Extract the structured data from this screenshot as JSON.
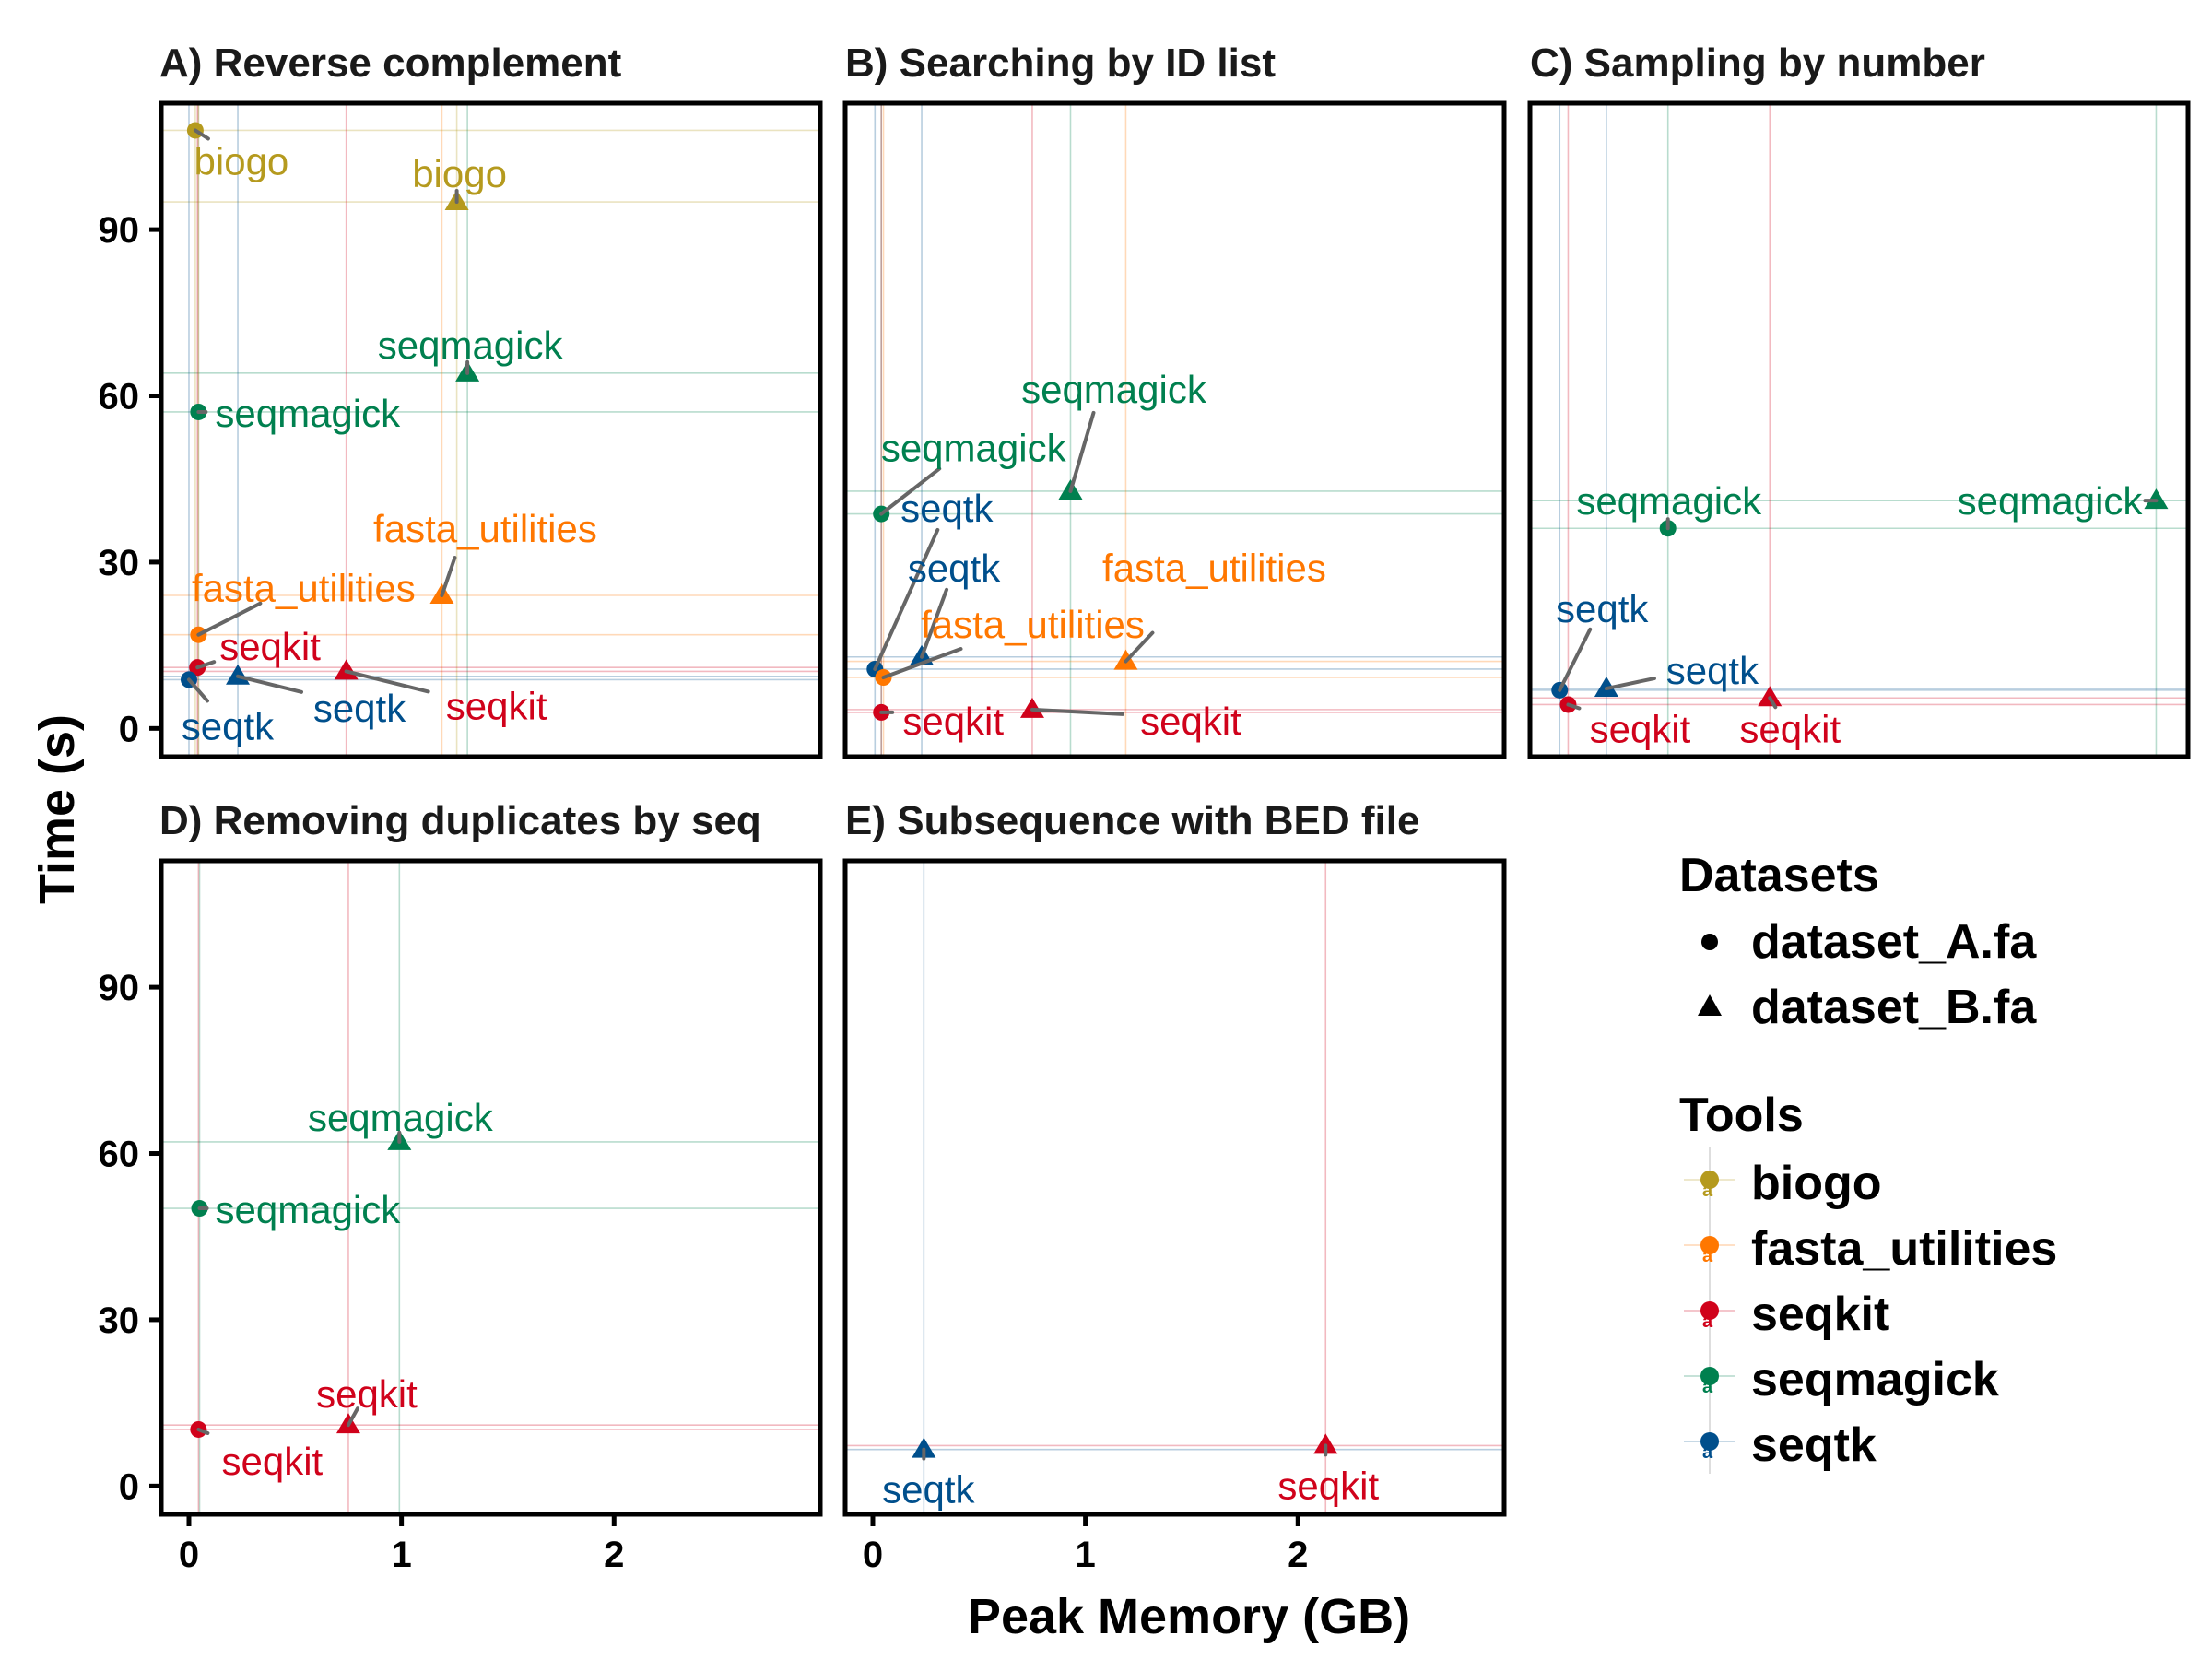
{
  "chart_data": {
    "type": "scatter",
    "xlabel": "Peak Memory (GB)",
    "ylabel": "Time (s)",
    "xlim": [
      -0.13,
      2.97
    ],
    "ylim": [
      -5.1,
      112.8
    ],
    "x_ticks": [
      "0",
      "1",
      "2"
    ],
    "x_tick_values": [
      0,
      1,
      2
    ],
    "y_ticks": [
      "0",
      "30",
      "60",
      "90"
    ],
    "y_tick_values": [
      0,
      30,
      60,
      90
    ],
    "grid": false,
    "legend_placement": "right",
    "legends": {
      "datasets": {
        "title": "Datasets",
        "entries": [
          {
            "label": "dataset_A.fa",
            "shape": "circle"
          },
          {
            "label": "dataset_B.fa",
            "shape": "triangle"
          }
        ]
      },
      "tools": {
        "title": "Tools",
        "entries": [
          {
            "label": "biogo",
            "color": "#B59A1E"
          },
          {
            "label": "fasta_utilities",
            "color": "#FF7700"
          },
          {
            "label": "seqkit",
            "color": "#D0021B"
          },
          {
            "label": "seqmagick",
            "color": "#00804F"
          },
          {
            "label": "seqtk",
            "color": "#004F8C"
          }
        ]
      }
    },
    "panels": [
      {
        "id": "A",
        "title": "A) Reverse complement",
        "points": [
          {
            "tool": "biogo",
            "dataset": "dataset_A.fa",
            "x": 0.03,
            "y": 107.9,
            "label": "biogo"
          },
          {
            "tool": "biogo",
            "dataset": "dataset_B.fa",
            "x": 1.26,
            "y": 95.0,
            "label": "biogo"
          },
          {
            "tool": "seqmagick",
            "dataset": "dataset_B.fa",
            "x": 1.31,
            "y": 64.1,
            "label": "seqmagick"
          },
          {
            "tool": "seqmagick",
            "dataset": "dataset_A.fa",
            "x": 0.045,
            "y": 57.1,
            "label": "seqmagick"
          },
          {
            "tool": "fasta_utilities",
            "dataset": "dataset_B.fa",
            "x": 1.19,
            "y": 24.0,
            "label": "fasta_utilities"
          },
          {
            "tool": "fasta_utilities",
            "dataset": "dataset_A.fa",
            "x": 0.045,
            "y": 16.9,
            "label": "fasta_utilities"
          },
          {
            "tool": "seqkit",
            "dataset": "dataset_A.fa",
            "x": 0.04,
            "y": 11.0,
            "label": "seqkit"
          },
          {
            "tool": "seqkit",
            "dataset": "dataset_B.fa",
            "x": 0.74,
            "y": 10.3,
            "label": "seqkit"
          },
          {
            "tool": "seqtk",
            "dataset": "dataset_B.fa",
            "x": 0.23,
            "y": 9.4,
            "label": "seqtk"
          },
          {
            "tool": "seqtk",
            "dataset": "dataset_A.fa",
            "x": 0.0,
            "y": 8.8,
            "label": "seqtk"
          }
        ]
      },
      {
        "id": "B",
        "title": "B) Searching by ID list",
        "points": [
          {
            "tool": "seqmagick",
            "dataset": "dataset_A.fa",
            "x": 0.04,
            "y": 38.7,
            "label": "seqmagick"
          },
          {
            "tool": "seqmagick",
            "dataset": "dataset_B.fa",
            "x": 0.93,
            "y": 42.8,
            "label": "seqmagick"
          },
          {
            "tool": "seqtk",
            "dataset": "dataset_A.fa",
            "x": 0.01,
            "y": 10.7,
            "label": "seqtk"
          },
          {
            "tool": "seqtk",
            "dataset": "dataset_B.fa",
            "x": 0.23,
            "y": 12.9,
            "label": "seqtk"
          },
          {
            "tool": "fasta_utilities",
            "dataset": "dataset_A.fa",
            "x": 0.05,
            "y": 9.2,
            "label": "fasta_utilities"
          },
          {
            "tool": "fasta_utilities",
            "dataset": "dataset_B.fa",
            "x": 1.19,
            "y": 12.1,
            "label": "fasta_utilities"
          },
          {
            "tool": "seqkit",
            "dataset": "dataset_A.fa",
            "x": 0.04,
            "y": 2.9,
            "label": "seqkit"
          },
          {
            "tool": "seqkit",
            "dataset": "dataset_B.fa",
            "x": 0.75,
            "y": 3.4,
            "label": "seqkit"
          }
        ]
      },
      {
        "id": "C",
        "title": "C) Sampling by number",
        "points": [
          {
            "tool": "seqmagick",
            "dataset": "dataset_A.fa",
            "x": 0.52,
            "y": 36.1,
            "label": "seqmagick"
          },
          {
            "tool": "seqmagick",
            "dataset": "dataset_B.fa",
            "x": 2.82,
            "y": 41.1,
            "label": "seqmagick"
          },
          {
            "tool": "seqtk",
            "dataset": "dataset_A.fa",
            "x": 0.01,
            "y": 6.9,
            "label": "seqtk"
          },
          {
            "tool": "seqtk",
            "dataset": "dataset_B.fa",
            "x": 0.23,
            "y": 7.2,
            "label": "seqtk"
          },
          {
            "tool": "seqkit",
            "dataset": "dataset_A.fa",
            "x": 0.05,
            "y": 4.3,
            "label": "seqkit"
          },
          {
            "tool": "seqkit",
            "dataset": "dataset_B.fa",
            "x": 1.0,
            "y": 5.5,
            "label": "seqkit"
          }
        ]
      },
      {
        "id": "D",
        "title": "D) Removing duplicates by seq",
        "points": [
          {
            "tool": "seqmagick",
            "dataset": "dataset_B.fa",
            "x": 0.99,
            "y": 62.1,
            "label": "seqmagick"
          },
          {
            "tool": "seqmagick",
            "dataset": "dataset_A.fa",
            "x": 0.05,
            "y": 50.1,
            "label": "seqmagick"
          },
          {
            "tool": "seqkit",
            "dataset": "dataset_B.fa",
            "x": 0.75,
            "y": 11.0,
            "label": "seqkit"
          },
          {
            "tool": "seqkit",
            "dataset": "dataset_A.fa",
            "x": 0.045,
            "y": 10.2,
            "label": "seqkit"
          }
        ]
      },
      {
        "id": "E",
        "title": "E) Subsequence with BED file",
        "points": [
          {
            "tool": "seqtk",
            "dataset": "dataset_B.fa",
            "x": 0.24,
            "y": 6.6,
            "label": "seqtk"
          },
          {
            "tool": "seqkit",
            "dataset": "dataset_B.fa",
            "x": 2.13,
            "y": 7.3,
            "label": "seqkit"
          }
        ]
      }
    ]
  }
}
